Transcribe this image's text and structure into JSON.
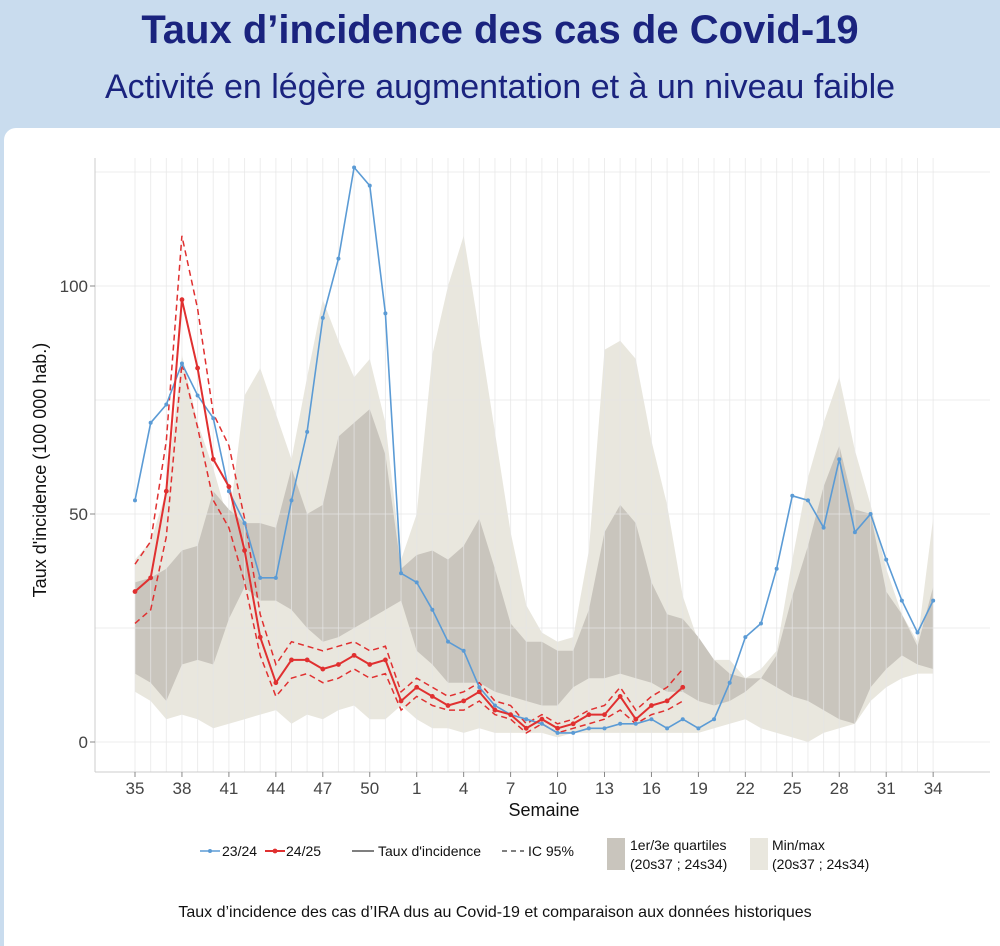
{
  "header": {
    "title": "Taux d’incidence des cas de Covid-19",
    "subtitle": "Activité en légère augmentation et à un niveau faible"
  },
  "caption": "Taux d’incidence des cas d’IRA dus au Covid-19 et comparaison aux données historiques",
  "colors": {
    "series_2324": "#5b9bd5",
    "series_2425": "#e03030",
    "quartile_band": "#c9c5bd",
    "minmax_band": "#e9e7de",
    "grid": "#e6e6e6",
    "header_bg": "#c9dcee",
    "title_text": "#1a237e"
  },
  "chart_data": {
    "type": "line",
    "xlabel": "Semaine",
    "ylabel": "Taux d'incidence (100 000 hab.)",
    "ylim": [
      0,
      127
    ],
    "grid": true,
    "legend_position": "bottom",
    "x_tick_labels": [
      "35",
      "38",
      "41",
      "44",
      "47",
      "50",
      "1",
      "4",
      "7",
      "10",
      "13",
      "16",
      "19",
      "22",
      "25",
      "28",
      "31",
      "34"
    ],
    "y_ticks": [
      0,
      50,
      100
    ],
    "weeks": [
      "35",
      "36",
      "37",
      "38",
      "39",
      "40",
      "41",
      "42",
      "43",
      "44",
      "45",
      "46",
      "47",
      "48",
      "49",
      "50",
      "51",
      "52",
      "1",
      "2",
      "3",
      "4",
      "5",
      "6",
      "7",
      "8",
      "9",
      "10",
      "11",
      "12",
      "13",
      "14",
      "15",
      "16",
      "17",
      "18",
      "19",
      "20",
      "21",
      "22",
      "23",
      "24",
      "25",
      "26",
      "27",
      "28",
      "29",
      "30",
      "31",
      "32",
      "33",
      "34"
    ],
    "series": [
      {
        "name": "23/24",
        "values": [
          53,
          70,
          74,
          83,
          76,
          71,
          55,
          48,
          36,
          36,
          53,
          68,
          93,
          106,
          126,
          122,
          94,
          37,
          35,
          29,
          22,
          20,
          12,
          8,
          6,
          5,
          4,
          2,
          2,
          3,
          3,
          4,
          4,
          5,
          3,
          5,
          3,
          5,
          13,
          23,
          26,
          38,
          54,
          53,
          47,
          62,
          46,
          50,
          40,
          31,
          24,
          31
        ]
      },
      {
        "name": "24/25",
        "values": [
          33,
          36,
          55,
          97,
          82,
          62,
          56,
          42,
          23,
          13,
          18,
          18,
          16,
          17,
          19,
          17,
          18,
          9,
          12,
          10,
          8,
          9,
          11,
          7,
          6,
          3,
          5,
          3,
          4,
          6,
          6,
          10,
          5,
          8,
          9,
          12
        ]
      }
    ],
    "ic95_upper": [
      39,
      44,
      66,
      111,
      95,
      72,
      65,
      49,
      28,
      17,
      22,
      21,
      20,
      21,
      22,
      20,
      21,
      11,
      14,
      12,
      10,
      11,
      13,
      9,
      8,
      4,
      6,
      4,
      5,
      7,
      8,
      12,
      7,
      10,
      12,
      16
    ],
    "ic95_lower": [
      26,
      29,
      45,
      83,
      69,
      53,
      47,
      35,
      19,
      10,
      14,
      15,
      13,
      14,
      16,
      14,
      15,
      7,
      10,
      8,
      7,
      7,
      9,
      6,
      5,
      2,
      4,
      2,
      3,
      4,
      5,
      7,
      4,
      6,
      7,
      9
    ],
    "quartiles": {
      "label": "1er/3e quartiles",
      "period": "(20s37 ; 24s34)",
      "q1": [
        15,
        13,
        9,
        17,
        18,
        17,
        27,
        34,
        31,
        31,
        29,
        25,
        22,
        23,
        25,
        27,
        29,
        31,
        20,
        17,
        13,
        13,
        13,
        11,
        10,
        9,
        8,
        8,
        12,
        14,
        14,
        15,
        14,
        13,
        11,
        11,
        9,
        8,
        9,
        11,
        14,
        12,
        10,
        9,
        7,
        5,
        4,
        12,
        16,
        19,
        17,
        16
      ],
      "q3": [
        35,
        36,
        38,
        42,
        43,
        55,
        51,
        48,
        48,
        47,
        60,
        50,
        52,
        67,
        70,
        73,
        63,
        38,
        41,
        42,
        40,
        43,
        49,
        38,
        26,
        22,
        22,
        20,
        20,
        29,
        46,
        52,
        48,
        35,
        28,
        27,
        23,
        18,
        15,
        14,
        14,
        19,
        32,
        43,
        56,
        65,
        51,
        50,
        33,
        28,
        21,
        34
      ]
    },
    "minmax": {
      "label": "Min/max",
      "period": "(20s37 ; 24s34)",
      "min": [
        11,
        9,
        5,
        6,
        5,
        3,
        4,
        5,
        6,
        7,
        4,
        6,
        5,
        7,
        8,
        5,
        5,
        8,
        5,
        3,
        3,
        2,
        3,
        2,
        2,
        2,
        2,
        1,
        2,
        2,
        2,
        2,
        2,
        2,
        2,
        2,
        2,
        3,
        4,
        5,
        3,
        2,
        1,
        0,
        2,
        3,
        4,
        9,
        12,
        14,
        15,
        15
      ],
      "max": [
        40,
        44,
        55,
        85,
        70,
        60,
        48,
        76,
        82,
        72,
        62,
        80,
        97,
        88,
        80,
        84,
        70,
        40,
        50,
        85,
        100,
        111,
        90,
        68,
        46,
        30,
        24,
        22,
        23,
        42,
        86,
        88,
        84,
        66,
        52,
        32,
        22,
        18,
        18,
        14,
        16,
        20,
        40,
        58,
        70,
        80,
        64,
        52,
        38,
        28,
        22,
        49
      ]
    },
    "legend": [
      {
        "key": "series_2324",
        "label": "23/24"
      },
      {
        "key": "series_2425",
        "label": "24/25"
      },
      {
        "key": "line",
        "label": "Taux d'incidence"
      },
      {
        "key": "dashed",
        "label": "IC 95%"
      },
      {
        "key": "quartile_band",
        "label": "1er/3e quartiles",
        "period": "(20s37 ; 24s34)"
      },
      {
        "key": "minmax_band",
        "label": "Min/max",
        "period": "(20s37 ; 24s34)"
      }
    ]
  }
}
